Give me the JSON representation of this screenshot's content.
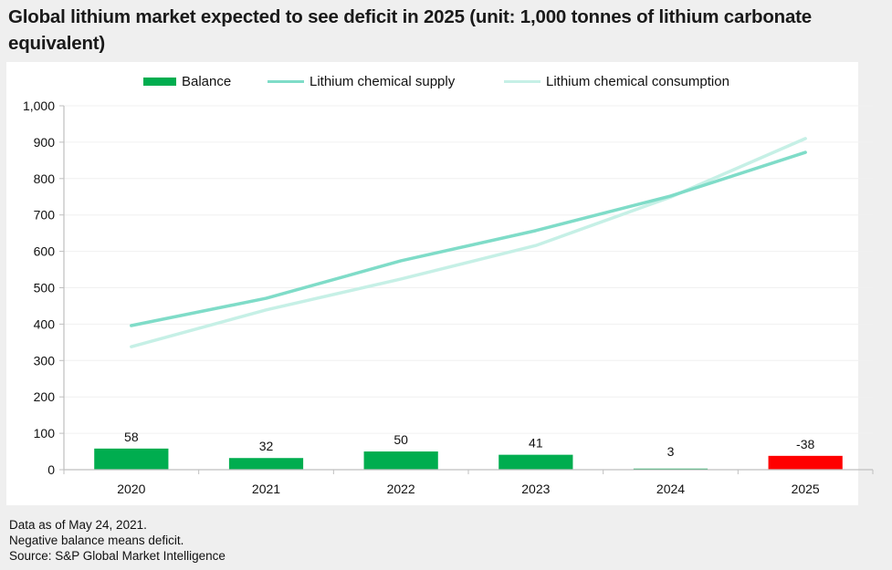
{
  "title": "Global lithium market expected to see deficit in 2025 (unit: 1,000 tonnes of lithium carbonate equivalent)",
  "legend": [
    {
      "label": "Balance",
      "kind": "bar",
      "color": "#00ad4f"
    },
    {
      "label": "Lithium chemical supply",
      "kind": "line",
      "color": "#7fdcc8"
    },
    {
      "label": "Lithium chemical consumption",
      "kind": "line",
      "color": "#c6f0e6"
    }
  ],
  "footnotes": [
    "Data as of May 24, 2021.",
    "Negative balance means deficit.",
    "Source: S&P Global Market Intelligence"
  ],
  "colors": {
    "surplus": "#00ad4f",
    "deficit": "#ff0000",
    "supply": "#7fdcc8",
    "consumption": "#c6f0e6",
    "axis": "#bfbfbf",
    "grid": "#f0f0f0"
  },
  "chart_data": {
    "type": "bar",
    "title": "Global lithium market expected to see deficit in 2025 (unit: 1,000 tonnes of lithium carbonate equivalent)",
    "xlabel": "",
    "ylabel": "",
    "categories": [
      "2020",
      "2021",
      "2022",
      "2023",
      "2024",
      "2025"
    ],
    "ylim": [
      0,
      1000
    ],
    "yticks": [
      0,
      100,
      200,
      300,
      400,
      500,
      600,
      700,
      800,
      900,
      1000
    ],
    "ytick_labels": [
      "0",
      "100",
      "200",
      "300",
      "400",
      "500",
      "600",
      "700",
      "800",
      "900",
      "1,000"
    ],
    "grid": true,
    "legend_position": "top",
    "series": [
      {
        "name": "Balance",
        "type": "bar",
        "values": [
          58,
          32,
          50,
          41,
          3,
          -38
        ],
        "labels": [
          "58",
          "32",
          "50",
          "41",
          "3",
          "-38"
        ],
        "note": "bars drawn by magnitude; negative shown in red"
      },
      {
        "name": "Lithium chemical supply",
        "type": "line",
        "values": [
          396,
          471,
          574,
          657,
          752,
          872
        ]
      },
      {
        "name": "Lithium chemical consumption",
        "type": "line",
        "values": [
          338,
          439,
          524,
          616,
          749,
          910
        ]
      }
    ]
  }
}
